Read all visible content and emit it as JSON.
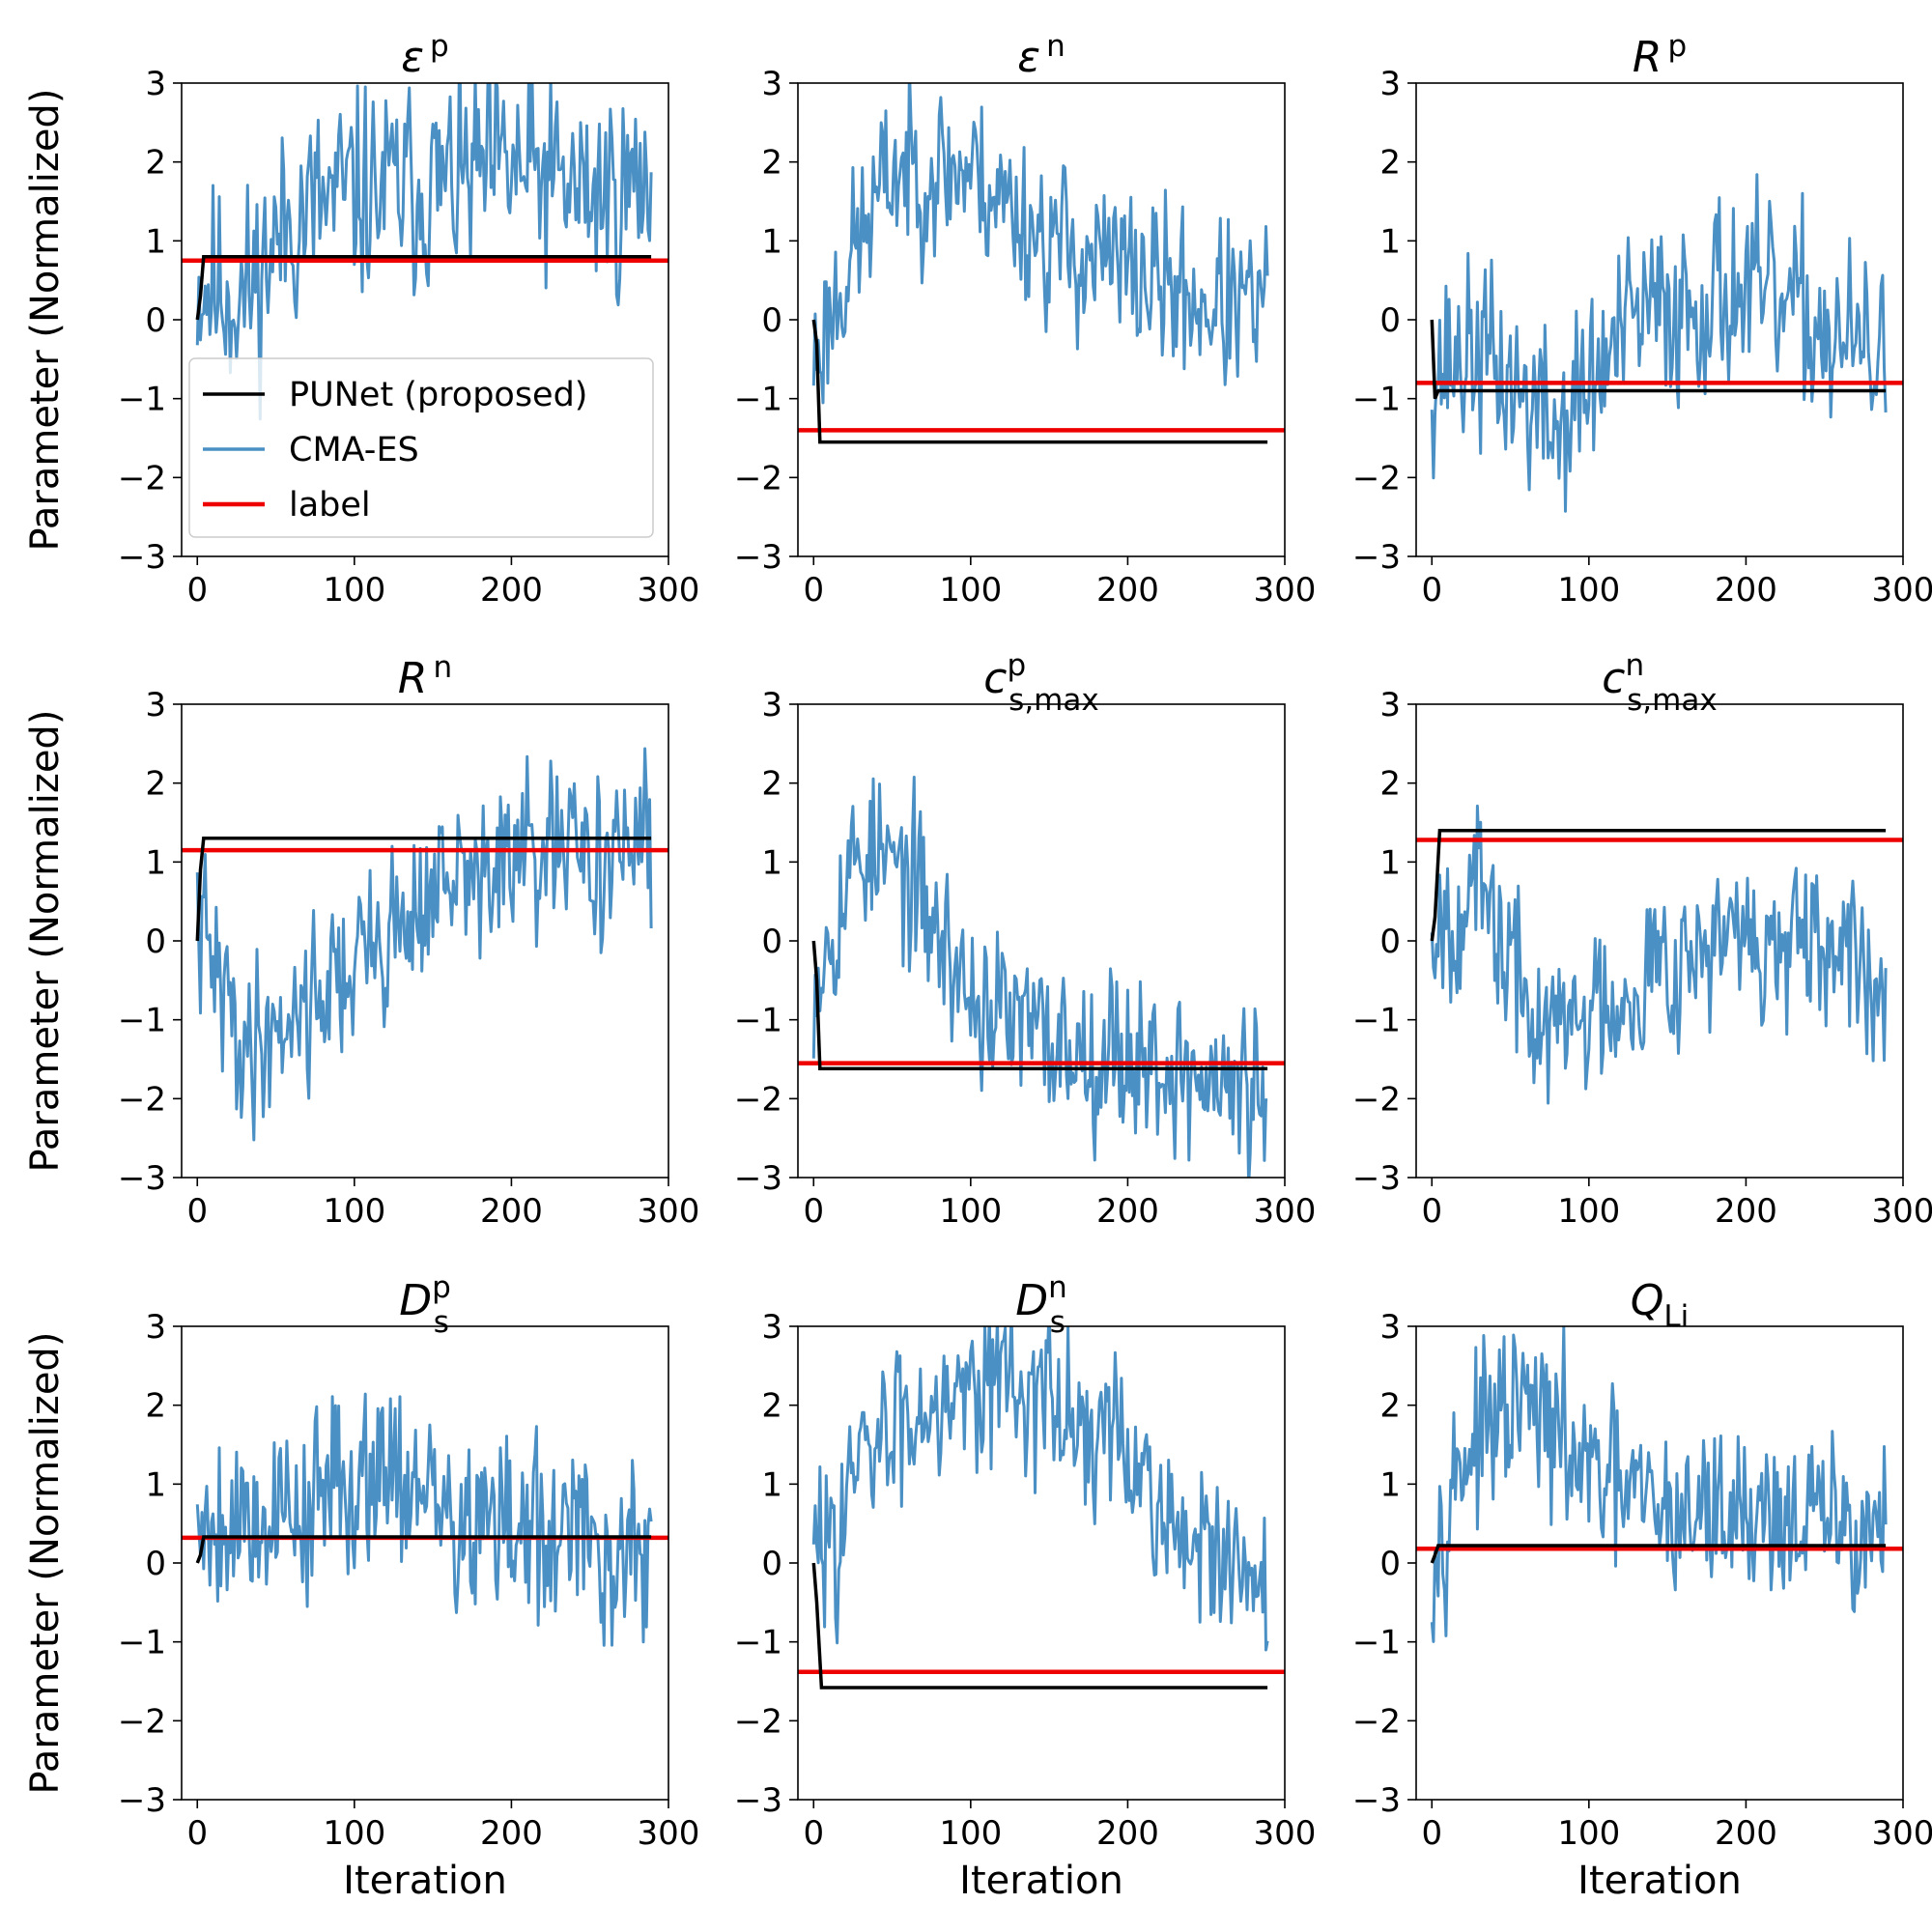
{
  "figure": {
    "ylabel": "Parameter (Normalized)",
    "xlabel": "Iteration",
    "legend": {
      "placement": "first-panel, center-left",
      "entries": [
        {
          "label": "PUNet (proposed)",
          "color": "#000000"
        },
        {
          "label": "CMA-ES",
          "color": "#4a90c4"
        },
        {
          "label": "label",
          "color": "#ee0000"
        }
      ]
    },
    "colors": {
      "punet": "#000000",
      "cmaes": "#4a90c4",
      "label": "#ee0000"
    }
  },
  "chart_data": [
    {
      "type": "line",
      "title": {
        "base": "ε",
        "sup": "p",
        "sub": ""
      },
      "xlim": [
        -10,
        300
      ],
      "ylim": [
        -3,
        3
      ],
      "xticks": [
        "0",
        "100",
        "200",
        "300"
      ],
      "yticks": [
        "3",
        "2",
        "1",
        "0",
        "−1",
        "−2",
        "−3"
      ],
      "label_value": 0.75,
      "punet": {
        "x": [
          0,
          2,
          4,
          6,
          289
        ],
        "y": [
          0,
          0.3,
          0.8,
          0.8,
          0.8
        ]
      },
      "cmaes": {
        "iterations": 289,
        "trend": {
          "x": [
            0,
            30,
            60,
            100,
            150,
            200,
            250,
            289
          ],
          "y": [
            0.5,
            0.3,
            1.3,
            1.6,
            1.7,
            1.9,
            1.6,
            1.7
          ]
        },
        "spread": 1.0,
        "seed": 11
      }
    },
    {
      "type": "line",
      "title": {
        "base": "ε",
        "sup": "n",
        "sub": ""
      },
      "xlim": [
        -10,
        300
      ],
      "ylim": [
        -3,
        3
      ],
      "xticks": [
        "0",
        "100",
        "200",
        "300"
      ],
      "yticks": [
        "3",
        "2",
        "1",
        "0",
        "−1",
        "−2",
        "−3"
      ],
      "label_value": -1.4,
      "punet": {
        "x": [
          0,
          2,
          4,
          289
        ],
        "y": [
          0,
          -0.3,
          -1.55,
          -1.55
        ]
      },
      "cmaes": {
        "iterations": 289,
        "trend": {
          "x": [
            0,
            20,
            50,
            100,
            150,
            200,
            250,
            289
          ],
          "y": [
            -0.5,
            0.6,
            1.9,
            1.9,
            1.0,
            0.6,
            0.2,
            0.1
          ]
        },
        "spread": 0.8,
        "seed": 23
      }
    },
    {
      "type": "line",
      "title": {
        "base": "R",
        "sup": "p",
        "sub": ""
      },
      "xlim": [
        -10,
        300
      ],
      "ylim": [
        -3,
        3
      ],
      "xticks": [
        "0",
        "100",
        "200",
        "300"
      ],
      "yticks": [
        "3",
        "2",
        "1",
        "0",
        "−1",
        "−2",
        "−3"
      ],
      "label_value": -0.8,
      "punet": {
        "x": [
          0,
          2,
          4,
          289
        ],
        "y": [
          0,
          -1.0,
          -0.9,
          -0.9
        ]
      },
      "cmaes": {
        "iterations": 289,
        "trend": {
          "x": [
            0,
            30,
            80,
            130,
            190,
            240,
            289
          ],
          "y": [
            -0.6,
            -0.4,
            -1.4,
            0.0,
            0.4,
            0.0,
            -0.6
          ]
        },
        "spread": 0.9,
        "seed": 37
      }
    },
    {
      "type": "line",
      "title": {
        "base": "R",
        "sup": "n",
        "sub": ""
      },
      "xlim": [
        -10,
        300
      ],
      "ylim": [
        -3,
        3
      ],
      "xticks": [
        "0",
        "100",
        "200",
        "300"
      ],
      "yticks": [
        "3",
        "2",
        "1",
        "0",
        "−1",
        "−2",
        "−3"
      ],
      "label_value": 1.15,
      "punet": {
        "x": [
          0,
          2,
          4,
          289
        ],
        "y": [
          0,
          0.9,
          1.3,
          1.3
        ]
      },
      "cmaes": {
        "iterations": 289,
        "trend": {
          "x": [
            0,
            30,
            60,
            100,
            150,
            200,
            250,
            289
          ],
          "y": [
            0.2,
            -1.4,
            -0.9,
            -0.3,
            0.6,
            1.0,
            1.1,
            1.2
          ]
        },
        "spread": 0.8,
        "seed": 41
      }
    },
    {
      "type": "line",
      "title": {
        "base": "c",
        "sup": "p",
        "sub": "s,max"
      },
      "xlim": [
        -10,
        300
      ],
      "ylim": [
        -3,
        3
      ],
      "xticks": [
        "0",
        "100",
        "200",
        "300"
      ],
      "yticks": [
        "3",
        "2",
        "1",
        "0",
        "−1",
        "−2",
        "−3"
      ],
      "label_value": -1.55,
      "punet": {
        "x": [
          0,
          2,
          4,
          289
        ],
        "y": [
          0,
          -0.5,
          -1.62,
          -1.62
        ]
      },
      "cmaes": {
        "iterations": 289,
        "trend": {
          "x": [
            0,
            30,
            60,
            100,
            150,
            200,
            250,
            289
          ],
          "y": [
            -0.4,
            1.2,
            0.8,
            -0.7,
            -1.3,
            -1.4,
            -1.8,
            -2.0
          ]
        },
        "spread": 0.8,
        "seed": 53
      }
    },
    {
      "type": "line",
      "title": {
        "base": "c",
        "sup": "n",
        "sub": "s,max"
      },
      "xlim": [
        -10,
        300
      ],
      "ylim": [
        -3,
        3
      ],
      "xticks": [
        "0",
        "100",
        "200",
        "300"
      ],
      "yticks": [
        "3",
        "2",
        "1",
        "0",
        "−1",
        "−2",
        "−3"
      ],
      "label_value": 1.28,
      "punet": {
        "x": [
          0,
          2,
          5,
          289
        ],
        "y": [
          0,
          0.3,
          1.4,
          1.4
        ]
      },
      "cmaes": {
        "iterations": 289,
        "trend": {
          "x": [
            0,
            30,
            70,
            100,
            150,
            200,
            250,
            289
          ],
          "y": [
            0.3,
            0.6,
            -1.2,
            -0.9,
            -0.2,
            0.0,
            -0.3,
            -0.4
          ]
        },
        "spread": 0.8,
        "seed": 67
      }
    },
    {
      "type": "line",
      "title": {
        "base": "D",
        "sup": "p",
        "sub": "s"
      },
      "xlim": [
        -10,
        300
      ],
      "ylim": [
        -3,
        3
      ],
      "xticks": [
        "0",
        "100",
        "200",
        "300"
      ],
      "yticks": [
        "3",
        "2",
        "1",
        "0",
        "−1",
        "−2",
        "−3"
      ],
      "label_value": 0.32,
      "punet": {
        "x": [
          0,
          2,
          4,
          289
        ],
        "y": [
          0,
          0.1,
          0.33,
          0.33
        ]
      },
      "cmaes": {
        "iterations": 289,
        "trend": {
          "x": [
            0,
            40,
            80,
            120,
            160,
            200,
            250,
            289
          ],
          "y": [
            0.6,
            0.6,
            0.8,
            1.4,
            0.5,
            0.4,
            0.2,
            0.1
          ]
        },
        "spread": 0.9,
        "seed": 79
      }
    },
    {
      "type": "line",
      "title": {
        "base": "D",
        "sup": "n",
        "sub": "s"
      },
      "xlim": [
        -10,
        300
      ],
      "ylim": [
        -3,
        3
      ],
      "xticks": [
        "0",
        "100",
        "200",
        "300"
      ],
      "yticks": [
        "3",
        "2",
        "1",
        "0",
        "−1",
        "−2",
        "−3"
      ],
      "label_value": -1.38,
      "punet": {
        "x": [
          0,
          2,
          5,
          289
        ],
        "y": [
          0,
          -0.5,
          -1.58,
          -1.58
        ]
      },
      "cmaes": {
        "iterations": 289,
        "trend": {
          "x": [
            0,
            30,
            70,
            110,
            160,
            200,
            250,
            289
          ],
          "y": [
            0.0,
            1.2,
            2.1,
            2.5,
            1.9,
            1.3,
            0.0,
            -0.5
          ]
        },
        "spread": 0.8,
        "seed": 83
      }
    },
    {
      "type": "line",
      "title": {
        "base": "Q",
        "sup": "",
        "sub": "Li"
      },
      "xlim": [
        -10,
        300
      ],
      "ylim": [
        -3,
        3
      ],
      "xticks": [
        "0",
        "100",
        "200",
        "300"
      ],
      "yticks": [
        "3",
        "2",
        "1",
        "0",
        "−1",
        "−2",
        "−3"
      ],
      "label_value": 0.18,
      "punet": {
        "x": [
          0,
          2,
          4,
          289
        ],
        "y": [
          0,
          0.1,
          0.22,
          0.22
        ]
      },
      "cmaes": {
        "iterations": 289,
        "trend": {
          "x": [
            0,
            20,
            60,
            100,
            150,
            200,
            250,
            289
          ],
          "y": [
            0.2,
            1.4,
            2.0,
            1.1,
            0.6,
            0.7,
            0.5,
            0.4
          ]
        },
        "spread": 0.8,
        "seed": 97
      }
    }
  ]
}
